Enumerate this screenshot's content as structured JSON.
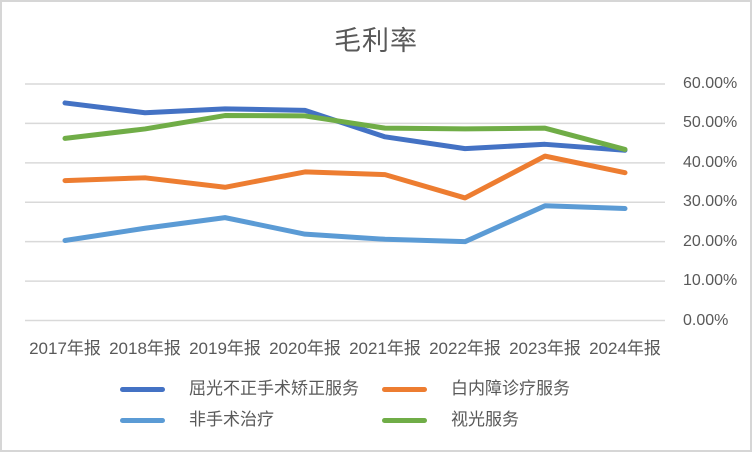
{
  "chart_data": {
    "type": "line",
    "title": "毛利率",
    "categories": [
      "2017年报",
      "2018年报",
      "2019年报",
      "2020年报",
      "2021年报",
      "2022年报",
      "2023年报",
      "2024年报"
    ],
    "series": [
      {
        "name": "屈光不正手术矫正服务",
        "color": "#4472C4",
        "values": [
          55.2,
          52.7,
          53.7,
          53.3,
          46.6,
          43.6,
          44.7,
          43.2
        ]
      },
      {
        "name": "白内障诊疗服务",
        "color": "#ED7D31",
        "values": [
          35.5,
          36.2,
          33.8,
          37.7,
          37.0,
          31.1,
          41.7,
          37.5
        ]
      },
      {
        "name": "非手术治疗",
        "color": "#5B9BD5",
        "values": [
          20.3,
          23.4,
          26.1,
          21.9,
          20.6,
          20.0,
          29.1,
          28.4
        ]
      },
      {
        "name": "视光服务",
        "color": "#70AD47",
        "values": [
          46.2,
          48.6,
          52.0,
          51.9,
          48.8,
          48.6,
          48.8,
          43.4
        ]
      }
    ],
    "y_axis": {
      "side": "right",
      "min": 0,
      "max": 60,
      "tick_labels": [
        "60.00%",
        "50.00%",
        "40.00%",
        "30.00%",
        "20.00%",
        "10.00%",
        "0.00%"
      ]
    },
    "x_axis": {
      "labels": [
        "2017年报",
        "2018年报",
        "2019年报",
        "2020年报",
        "2021年报",
        "2022年报",
        "2023年报",
        "2024年报"
      ]
    },
    "legend": {
      "position": "bottom",
      "rows": [
        [
          "屈光不正手术矫正服务",
          "白内障诊疗服务"
        ],
        [
          "非手术治疗",
          "视光服务"
        ]
      ]
    },
    "grid": true,
    "colors": {
      "gridline": "#D9D9D9",
      "text": "#595959",
      "background": "#FFFFFF",
      "border": "#D6D6D6"
    }
  }
}
